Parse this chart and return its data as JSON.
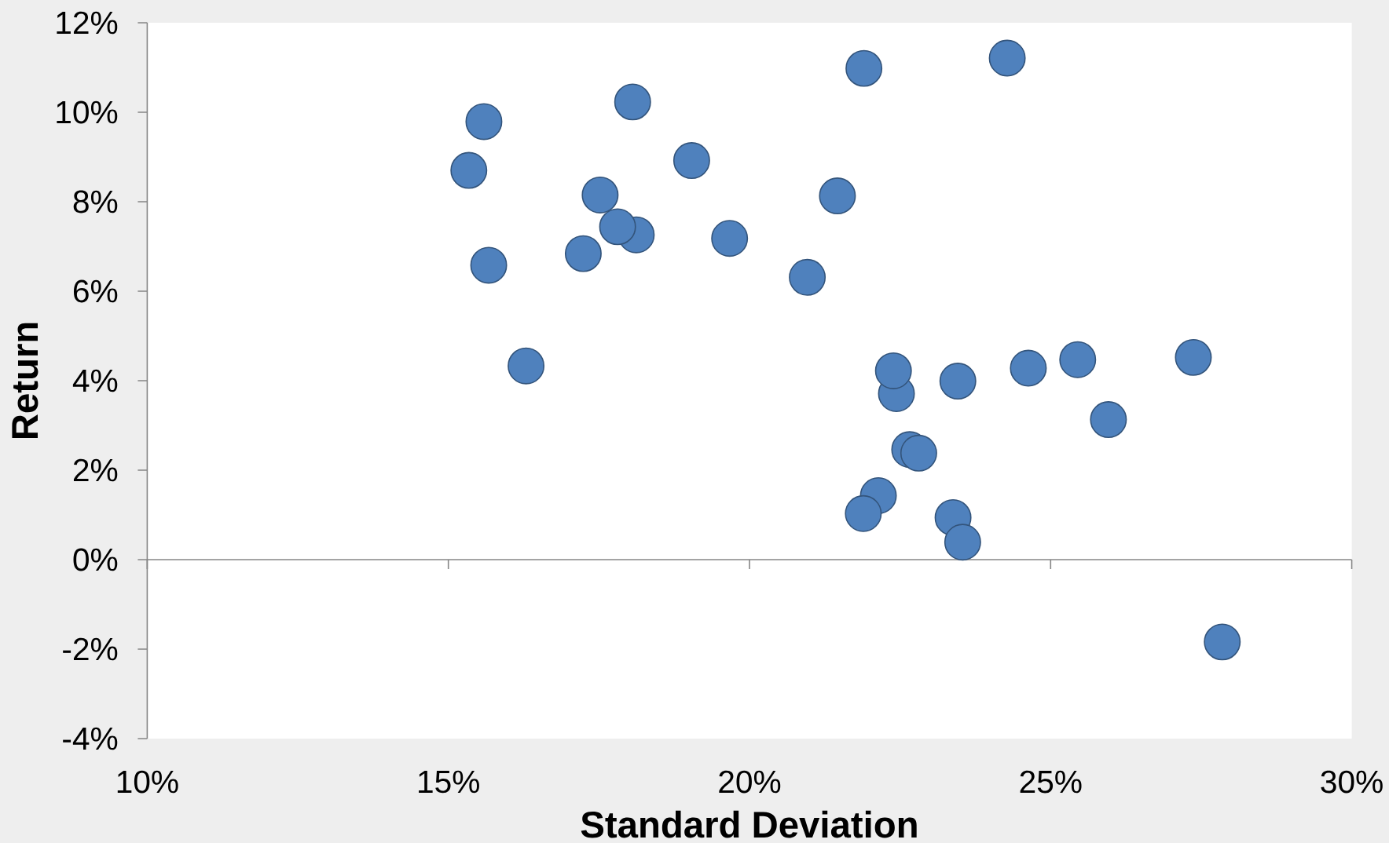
{
  "chart_data": {
    "type": "scatter",
    "xlabel": "Standard Deviation",
    "ylabel": "Return",
    "color": "#4f81bd",
    "marker": "circle",
    "x": [
      24.28,
      21.9,
      18.06,
      15.59,
      15.34,
      19.04,
      17.52,
      21.46,
      18.12,
      17.81,
      19.67,
      17.24,
      15.67,
      20.96,
      16.29,
      22.44,
      22.39,
      23.46,
      24.63,
      25.45,
      27.37,
      25.96,
      22.66,
      22.81,
      22.14,
      21.89,
      23.38,
      23.54,
      27.85
    ],
    "values": [
      11.21,
      10.98,
      10.23,
      9.79,
      8.7,
      8.92,
      8.15,
      8.13,
      7.26,
      7.44,
      7.18,
      6.84,
      6.58,
      6.31,
      4.33,
      3.71,
      4.22,
      3.99,
      4.28,
      4.47,
      4.52,
      3.13,
      2.46,
      2.38,
      1.43,
      1.03,
      0.94,
      0.39,
      -1.84
    ],
    "xlim": [
      10,
      30
    ],
    "ylim": [
      -4,
      12
    ],
    "xticks": [
      {
        "value": 10,
        "label": "10%"
      },
      {
        "value": 15,
        "label": "15%"
      },
      {
        "value": 20,
        "label": "20%"
      },
      {
        "value": 25,
        "label": "25%"
      },
      {
        "value": 30,
        "label": "30%"
      }
    ],
    "yticks": [
      {
        "value": -4,
        "label": "-4%"
      },
      {
        "value": -2,
        "label": "-2%"
      },
      {
        "value": 0,
        "label": "0%"
      },
      {
        "value": 2,
        "label": "2%"
      },
      {
        "value": 4,
        "label": "4%"
      },
      {
        "value": 6,
        "label": "6%"
      },
      {
        "value": 8,
        "label": "8%"
      },
      {
        "value": 10,
        "label": "10%"
      },
      {
        "value": 12,
        "label": "12%"
      }
    ]
  }
}
